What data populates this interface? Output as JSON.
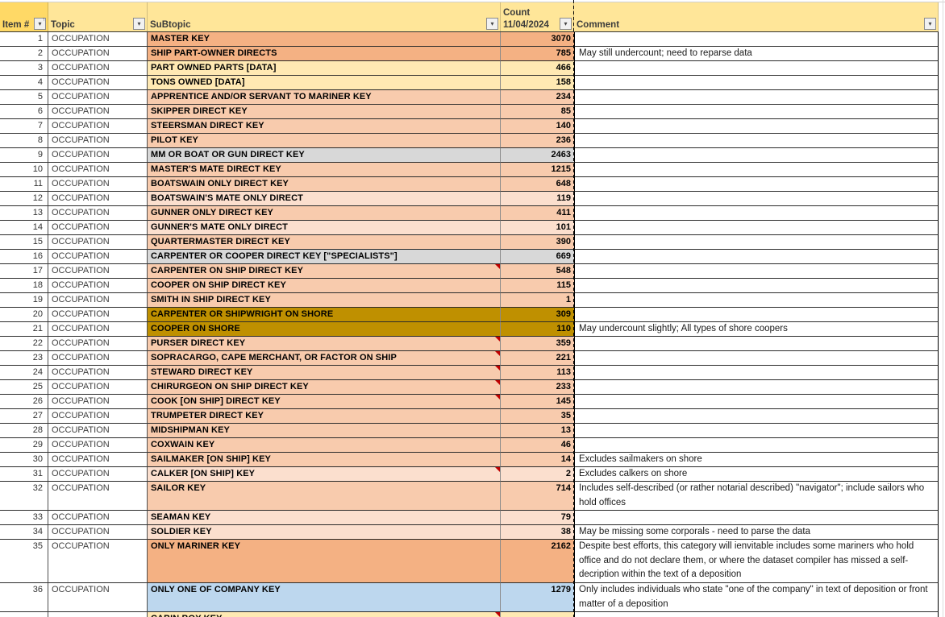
{
  "header": {
    "columns": [
      {
        "label": "Item #",
        "filter": "sort-ascending-filter"
      },
      {
        "label": "Topic",
        "filter": "dropdown"
      },
      {
        "label": "SuBtopic",
        "filter": "dropdown"
      },
      {
        "label": "Count",
        "sublabel": "11/04/2024",
        "filter": "dropdown"
      },
      {
        "label": "Comment",
        "filter": "dropdown"
      }
    ]
  },
  "colors": {
    "headerGold": "#FFE699",
    "headerGoldDark": "#FFD966",
    "orange": "#F4B183",
    "peach": "#F8CBAD",
    "peachLight": "#FBDFCE",
    "yellow": "#FFE9B3",
    "gray": "#D8D8D8",
    "gold": "#BF9000",
    "blue": "#BDD7EE",
    "indicatorRed": "#C00000"
  },
  "rows": [
    {
      "n": "1",
      "topic": "OCCUPATION",
      "sub": "MASTER KEY",
      "count": "3070",
      "comment": "",
      "fill": "orange",
      "ind": false,
      "lines": 1
    },
    {
      "n": "2",
      "topic": "OCCUPATION",
      "sub": "SHIP PART-OWNER DIRECTS",
      "count": "785",
      "comment": "May still undercount; need to reparse data",
      "fill": "orange",
      "ind": false,
      "lines": 1
    },
    {
      "n": "3",
      "topic": "OCCUPATION",
      "sub": "PART OWNED PARTS [DATA]",
      "count": "466",
      "comment": "",
      "fill": "yellow",
      "ind": false,
      "lines": 1
    },
    {
      "n": "4",
      "topic": "OCCUPATION",
      "sub": "TONS OWNED [DATA]",
      "count": "158",
      "comment": "",
      "fill": "yellow",
      "ind": false,
      "lines": 1
    },
    {
      "n": "5",
      "topic": "OCCUPATION",
      "sub": "APPRENTICE AND/OR SERVANT TO MARINER KEY",
      "count": "234",
      "comment": "",
      "fill": "peach",
      "ind": false,
      "lines": 1
    },
    {
      "n": "6",
      "topic": "OCCUPATION",
      "sub": "SKIPPER DIRECT KEY",
      "count": "85",
      "comment": "",
      "fill": "peach",
      "ind": false,
      "lines": 1
    },
    {
      "n": "7",
      "topic": "OCCUPATION",
      "sub": "STEERSMAN DIRECT KEY",
      "count": "140",
      "comment": "",
      "fill": "peach",
      "ind": false,
      "lines": 1
    },
    {
      "n": "8",
      "topic": "OCCUPATION",
      "sub": "PILOT KEY",
      "count": "236",
      "comment": "",
      "fill": "peach",
      "ind": false,
      "lines": 1
    },
    {
      "n": "9",
      "topic": "OCCUPATION",
      "sub": "MM OR BOAT OR GUN DIRECT KEY",
      "count": "2463",
      "comment": "",
      "fill": "gray",
      "ind": false,
      "lines": 1
    },
    {
      "n": "10",
      "topic": "OCCUPATION",
      "sub": "MASTER'S MATE DIRECT KEY",
      "count": "1215",
      "comment": "",
      "fill": "peach",
      "ind": false,
      "lines": 1
    },
    {
      "n": "11",
      "topic": "OCCUPATION",
      "sub": "BOATSWAIN ONLY DIRECT KEY",
      "count": "648",
      "comment": "",
      "fill": "peach",
      "ind": false,
      "lines": 1
    },
    {
      "n": "12",
      "topic": "OCCUPATION",
      "sub": "BOATSWAIN'S MATE ONLY DIRECT",
      "count": "119",
      "comment": "",
      "fill": "peachLight",
      "ind": false,
      "lines": 1
    },
    {
      "n": "13",
      "topic": "OCCUPATION",
      "sub": "GUNNER ONLY DIRECT KEY",
      "count": "411",
      "comment": "",
      "fill": "peach",
      "ind": false,
      "lines": 1
    },
    {
      "n": "14",
      "topic": "OCCUPATION",
      "sub": "GUNNER'S MATE ONLY DIRECT",
      "count": "101",
      "comment": "",
      "fill": "peachLight",
      "ind": false,
      "lines": 1
    },
    {
      "n": "15",
      "topic": "OCCUPATION",
      "sub": "QUARTERMASTER DIRECT KEY",
      "count": "390",
      "comment": "",
      "fill": "peach",
      "ind": false,
      "lines": 1
    },
    {
      "n": "16",
      "topic": "OCCUPATION",
      "sub": "CARPENTER OR COOPER DIRECT KEY [\"SPECIALISTS\"]",
      "count": "669",
      "comment": "",
      "fill": "gray",
      "ind": false,
      "lines": 1
    },
    {
      "n": "17",
      "topic": "OCCUPATION",
      "sub": "CARPENTER ON SHIP DIRECT KEY",
      "count": "548",
      "comment": "",
      "fill": "peach",
      "ind": true,
      "lines": 1
    },
    {
      "n": "18",
      "topic": "OCCUPATION",
      "sub": "COOPER ON SHIP DIRECT KEY",
      "count": "115",
      "comment": "",
      "fill": "peach",
      "ind": false,
      "lines": 1
    },
    {
      "n": "19",
      "topic": "OCCUPATION",
      "sub": "SMITH IN SHIP DIRECT KEY",
      "count": "1",
      "comment": "",
      "fill": "peach",
      "ind": false,
      "lines": 1
    },
    {
      "n": "20",
      "topic": "OCCUPATION",
      "sub": "CARPENTER OR SHIPWRIGHT ON SHORE",
      "count": "309",
      "comment": "",
      "fill": "gold",
      "ind": false,
      "lines": 1
    },
    {
      "n": "21",
      "topic": "OCCUPATION",
      "sub": "COOPER ON SHORE",
      "count": "110",
      "comment": "May undercount slightly; All types of shore coopers",
      "fill": "gold",
      "ind": false,
      "lines": 1
    },
    {
      "n": "22",
      "topic": "OCCUPATION",
      "sub": "PURSER DIRECT KEY",
      "count": "359",
      "comment": "",
      "fill": "peach",
      "ind": true,
      "lines": 1
    },
    {
      "n": "23",
      "topic": "OCCUPATION",
      "sub": "SOPRACARGO, CAPE MERCHANT, OR FACTOR ON SHIP",
      "count": "221",
      "comment": "",
      "fill": "peach",
      "ind": true,
      "lines": 1
    },
    {
      "n": "24",
      "topic": "OCCUPATION",
      "sub": "STEWARD DIRECT KEY",
      "count": "113",
      "comment": "",
      "fill": "peach",
      "ind": true,
      "lines": 1
    },
    {
      "n": "25",
      "topic": "OCCUPATION",
      "sub": "CHIRURGEON ON SHIP DIRECT KEY",
      "count": "233",
      "comment": "",
      "fill": "peach",
      "ind": true,
      "lines": 1
    },
    {
      "n": "26",
      "topic": "OCCUPATION",
      "sub": "COOK [ON SHIP] DIRECT KEY",
      "count": "145",
      "comment": "",
      "fill": "peach",
      "ind": true,
      "lines": 1
    },
    {
      "n": "27",
      "topic": "OCCUPATION",
      "sub": "TRUMPETER DIRECT KEY",
      "count": "35",
      "comment": "",
      "fill": "peach",
      "ind": false,
      "lines": 1
    },
    {
      "n": "28",
      "topic": "OCCUPATION",
      "sub": "MIDSHIPMAN KEY",
      "count": "13",
      "comment": "",
      "fill": "peach",
      "ind": false,
      "lines": 1
    },
    {
      "n": "29",
      "topic": "OCCUPATION",
      "sub": "COXWAIN KEY",
      "count": "46",
      "comment": "",
      "fill": "peach",
      "ind": false,
      "lines": 1
    },
    {
      "n": "30",
      "topic": "OCCUPATION",
      "sub": "SAILMAKER [ON SHIP] KEY",
      "count": "14",
      "comment": "Excludes sailmakers on shore",
      "fill": "peach",
      "ind": false,
      "lines": 1
    },
    {
      "n": "31",
      "topic": "OCCUPATION",
      "sub": "CALKER [ON SHIP] KEY",
      "count": "2",
      "comment": "Excludes calkers on shore",
      "fill": "peachLight",
      "ind": true,
      "lines": 1
    },
    {
      "n": "32",
      "topic": "OCCUPATION",
      "sub": "SAILOR KEY",
      "count": "714",
      "comment": "Includes self-described (or rather notarial described) \"navigator\"; include sailors who hold offices",
      "fill": "peach",
      "ind": false,
      "lines": 2
    },
    {
      "n": "33",
      "topic": "OCCUPATION",
      "sub": "SEAMAN KEY",
      "count": "79",
      "comment": "",
      "fill": "peachLight",
      "ind": false,
      "lines": 1
    },
    {
      "n": "34",
      "topic": "OCCUPATION",
      "sub": "SOLDIER KEY",
      "count": "38",
      "comment": "May be missing some corporals - need to parse the data",
      "fill": "peachLight",
      "ind": false,
      "lines": 1
    },
    {
      "n": "35",
      "topic": "OCCUPATION",
      "sub": "ONLY MARINER KEY",
      "count": "2162",
      "comment": "Despite best efforts, this category will ienvitable includes some mariners who hold office and do not declare them, or where the dataset compiler has missed a self-decription within the text of a deposition",
      "fill": "orange",
      "ind": false,
      "lines": 3
    },
    {
      "n": "36",
      "topic": "OCCUPATION",
      "sub": "ONLY ONE OF COMPANY KEY",
      "count": "1279",
      "comment": "Only includes individuals who state \"one of the company\" in text of deposition or front matter of a deposition",
      "fill": "blue",
      "ind": false,
      "lines": 2
    },
    {
      "n": "",
      "topic": "",
      "sub": "CABIN BOY KEY",
      "count": "",
      "comment": "",
      "fill": "yellow",
      "ind": true,
      "lines": 1
    }
  ]
}
